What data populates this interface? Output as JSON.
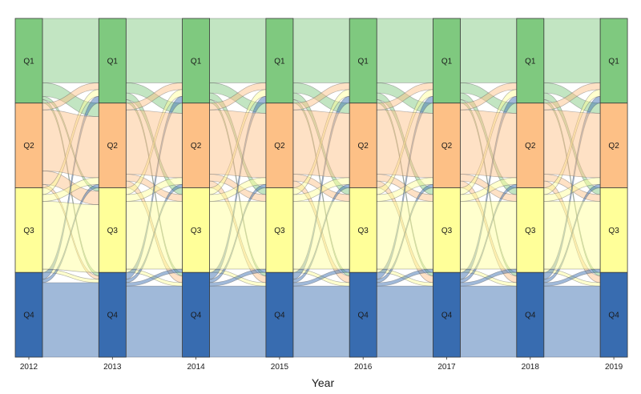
{
  "chart_data": {
    "type": "alluvial",
    "xlabel": "Year",
    "years": [
      "2012",
      "2013",
      "2014",
      "2015",
      "2016",
      "2017",
      "2018",
      "2019"
    ],
    "categories": [
      "Q1",
      "Q2",
      "Q3",
      "Q4"
    ],
    "colors": {
      "Q1": "#7fc97f",
      "Q2": "#fdc086",
      "Q3": "#ffff99",
      "Q4": "#386cb0"
    },
    "stratum_totals": {
      "Q1": 25,
      "Q2": 25,
      "Q3": 25,
      "Q4": 25
    },
    "transitions": [
      [
        [
          19,
          4,
          1,
          1
        ],
        [
          2,
          18,
          4,
          1
        ],
        [
          2,
          2,
          20,
          1
        ],
        [
          2,
          1,
          0,
          22
        ]
      ],
      [
        [
          19,
          3,
          2,
          1
        ],
        [
          2,
          19,
          2,
          2
        ],
        [
          2,
          2,
          20,
          1
        ],
        [
          2,
          1,
          1,
          21
        ]
      ],
      [
        [
          19,
          3,
          2,
          1
        ],
        [
          2,
          19,
          2,
          2
        ],
        [
          2,
          2,
          20,
          1
        ],
        [
          2,
          1,
          1,
          21
        ]
      ],
      [
        [
          19,
          3,
          2,
          1
        ],
        [
          2,
          19,
          2,
          2
        ],
        [
          2,
          2,
          20,
          1
        ],
        [
          2,
          1,
          1,
          21
        ]
      ],
      [
        [
          19,
          3,
          2,
          1
        ],
        [
          2,
          19,
          2,
          2
        ],
        [
          2,
          2,
          20,
          1
        ],
        [
          2,
          1,
          1,
          21
        ]
      ],
      [
        [
          19,
          3,
          2,
          1
        ],
        [
          2,
          19,
          2,
          2
        ],
        [
          2,
          2,
          20,
          1
        ],
        [
          2,
          1,
          1,
          21
        ]
      ],
      [
        [
          19,
          3,
          2,
          1
        ],
        [
          2,
          19,
          2,
          2
        ],
        [
          2,
          2,
          20,
          1
        ],
        [
          2,
          1,
          1,
          21
        ]
      ]
    ]
  }
}
